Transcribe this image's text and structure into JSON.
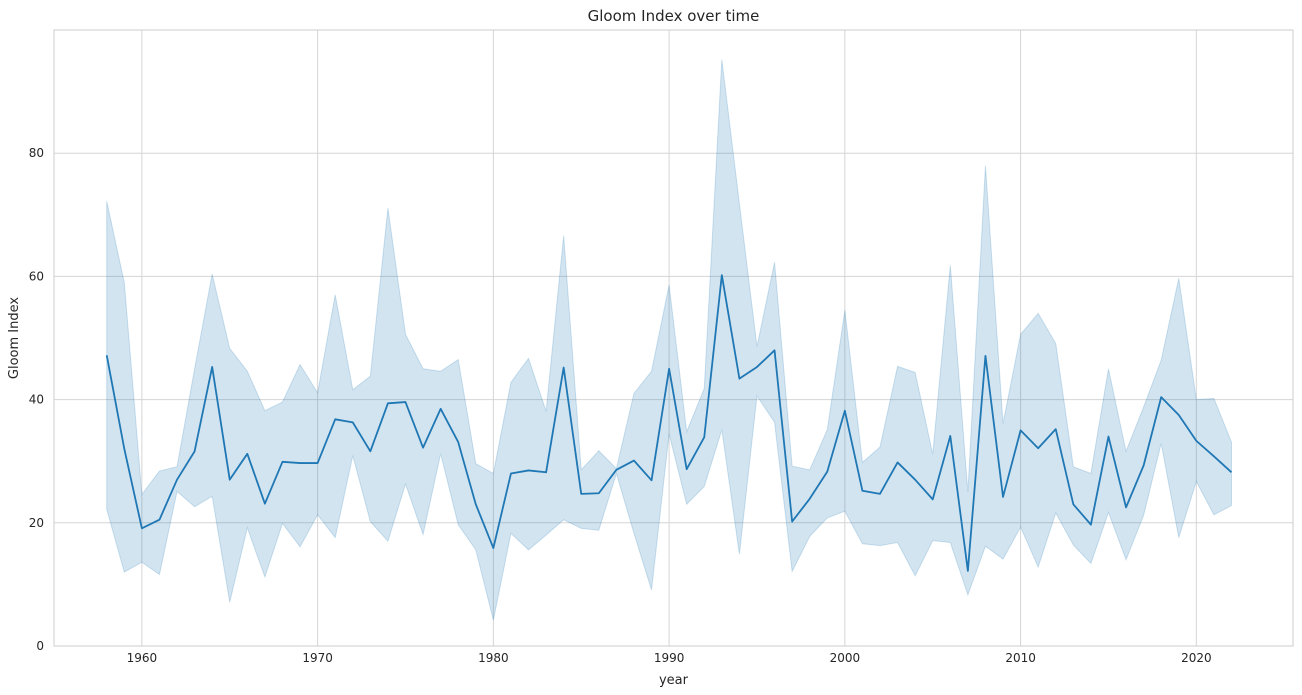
{
  "chart_data": {
    "type": "line",
    "title": "Gloom Index over time",
    "xlabel": "year",
    "ylabel": "Gloom Index",
    "xlim": [
      1955,
      2025.5
    ],
    "ylim": [
      0,
      100
    ],
    "xticks": [
      1960,
      1970,
      1980,
      1990,
      2000,
      2010,
      2020
    ],
    "yticks": [
      0,
      20,
      40,
      60,
      80
    ],
    "grid": true,
    "colors": {
      "line": "#1f77b4",
      "band": "#1f77b4",
      "grid": "#d5d5d5",
      "frame": "#cccccc"
    },
    "series": [
      {
        "x": [
          1958,
          1959,
          1960,
          1961,
          1962,
          1963,
          1964,
          1965,
          1966,
          1967,
          1968,
          1969,
          1970,
          1971,
          1972,
          1973,
          1974,
          1975,
          1976,
          1977,
          1978,
          1979,
          1980,
          1981,
          1982,
          1983,
          1984,
          1985,
          1986,
          1987,
          1988,
          1989,
          1990,
          1991,
          1992,
          1993,
          1994,
          1995,
          1996,
          1997,
          1998,
          1999,
          2000,
          2001,
          2002,
          2003,
          2004,
          2005,
          2006,
          2007,
          2008,
          2009,
          2010,
          2011,
          2012,
          2013,
          2014,
          2015,
          2016,
          2017,
          2018,
          2019,
          2020,
          2021,
          2022
        ],
        "y": [
          47.2,
          32.0,
          19.1,
          20.5,
          27.0,
          31.6,
          45.3,
          27.0,
          31.2,
          23.1,
          29.9,
          29.7,
          29.7,
          36.8,
          36.3,
          31.6,
          39.4,
          39.6,
          32.2,
          38.5,
          33.1,
          23.0,
          15.9,
          28.0,
          28.5,
          28.2,
          45.2,
          24.7,
          24.8,
          28.6,
          30.1,
          26.9,
          45.0,
          28.7,
          33.9,
          60.2,
          43.4,
          45.3,
          48.0,
          20.2,
          23.9,
          28.3,
          38.2,
          25.2,
          24.7,
          29.8,
          27.0,
          23.8,
          34.1,
          12.2,
          47.1,
          24.2,
          35.0,
          32.1,
          35.2,
          23.0,
          19.7,
          34.0,
          22.5,
          29.3,
          40.4,
          37.5,
          33.3,
          30.8,
          28.2
        ],
        "ci_low": [
          22.2,
          12.0,
          13.6,
          11.6,
          25.1,
          22.6,
          24.3,
          7.1,
          19.2,
          11.2,
          19.9,
          16.1,
          21.3,
          17.6,
          30.9,
          20.2,
          17.0,
          26.3,
          18.1,
          31.2,
          19.7,
          15.6,
          4.2,
          18.3,
          15.6,
          18.0,
          20.5,
          19.1,
          18.8,
          28.0,
          18.3,
          9.1,
          34.4,
          23.0,
          25.9,
          35.1,
          14.9,
          40.6,
          36.3,
          12.1,
          17.8,
          20.8,
          21.9,
          16.6,
          16.3,
          16.8,
          11.4,
          17.1,
          16.8,
          8.3,
          16.2,
          14.1,
          19.3,
          12.8,
          21.6,
          16.4,
          13.4,
          21.7,
          14.0,
          21.2,
          32.9,
          17.6,
          26.7,
          21.3,
          22.8
        ],
        "ci_high": [
          72.2,
          59.0,
          24.6,
          28.4,
          29.1,
          45.0,
          60.4,
          48.3,
          44.6,
          38.2,
          39.6,
          45.7,
          41.1,
          57.0,
          41.6,
          43.8,
          71.1,
          50.6,
          45.0,
          44.6,
          46.5,
          29.6,
          28.0,
          42.8,
          46.7,
          38.1,
          66.6,
          28.6,
          31.7,
          28.8,
          41.0,
          44.6,
          58.6,
          34.8,
          41.8,
          95.2,
          71.8,
          48.6,
          62.3,
          29.2,
          28.6,
          35.1,
          54.5,
          29.8,
          32.3,
          45.4,
          44.4,
          31.1,
          61.8,
          25.0,
          78.0,
          36.1,
          50.6,
          54.0,
          49.1,
          29.1,
          28.0,
          45.0,
          31.6,
          38.8,
          46.4,
          59.7,
          40.0,
          40.2,
          33.1
        ]
      }
    ]
  }
}
